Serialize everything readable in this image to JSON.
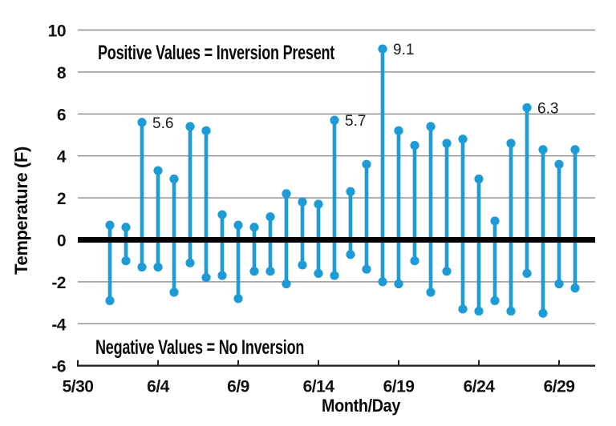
{
  "chart_data": {
    "type": "stem-range",
    "title": "",
    "xlabel": "Month/Day",
    "ylabel": "Temperature (F)",
    "ylim": [
      -6,
      10
    ],
    "yticks": [
      10,
      8,
      6,
      4,
      2,
      0,
      -2,
      -4,
      -6
    ],
    "xticks": [
      {
        "label": "5/30",
        "day": 0
      },
      {
        "label": "6/4",
        "day": 5
      },
      {
        "label": "6/9",
        "day": 10
      },
      {
        "label": "6/14",
        "day": 15
      },
      {
        "label": "6/19",
        "day": 20
      },
      {
        "label": "6/24",
        "day": 25
      },
      {
        "label": "6/29",
        "day": 30
      }
    ],
    "x_axis_span_days": [
      0,
      32.25
    ],
    "categories": [
      "6/1",
      "6/2",
      "6/3",
      "6/4",
      "6/5",
      "6/6",
      "6/7",
      "6/8",
      "6/9",
      "6/10",
      "6/11",
      "6/12",
      "6/13",
      "6/14",
      "6/15",
      "6/16",
      "6/17",
      "6/18",
      "6/19",
      "6/20",
      "6/21",
      "6/22",
      "6/23",
      "6/24",
      "6/25",
      "6/26",
      "6/27",
      "6/28",
      "6/29",
      "6/30"
    ],
    "category_days": [
      2,
      3,
      4,
      5,
      6,
      7,
      8,
      9,
      10,
      11,
      12,
      13,
      14,
      15,
      16,
      17,
      18,
      19,
      20,
      21,
      22,
      23,
      24,
      25,
      26,
      27,
      28,
      29,
      30,
      31
    ],
    "series": [
      {
        "name": "daily_max",
        "values": [
          0.7,
          0.6,
          5.6,
          3.3,
          2.9,
          5.4,
          5.2,
          1.2,
          0.7,
          0.6,
          1.1,
          2.2,
          1.8,
          1.7,
          5.7,
          2.3,
          3.6,
          9.1,
          5.2,
          4.5,
          5.4,
          4.6,
          4.8,
          2.9,
          0.9,
          4.6,
          6.3,
          4.3,
          3.6,
          4.3
        ]
      },
      {
        "name": "daily_min",
        "values": [
          -2.9,
          -1.0,
          -1.3,
          -1.3,
          -2.5,
          -1.1,
          -1.8,
          -1.7,
          -2.8,
          -1.5,
          -1.5,
          -2.1,
          -1.2,
          -1.6,
          -1.7,
          -0.7,
          -1.4,
          -2.0,
          -2.1,
          -1.0,
          -2.5,
          -1.5,
          -3.3,
          -3.4,
          -2.9,
          -3.4,
          -1.6,
          -3.5,
          -2.1,
          -2.3
        ]
      }
    ],
    "point_labels": [
      {
        "category": "6/3",
        "series": "daily_max",
        "text": "5.6"
      },
      {
        "category": "6/15",
        "series": "daily_max",
        "text": "5.7"
      },
      {
        "category": "6/18",
        "series": "daily_max",
        "text": "9.1"
      },
      {
        "category": "6/27",
        "series": "daily_max",
        "text": "6.3"
      }
    ],
    "annotations": [
      {
        "text": "Positive Values = Inversion Present",
        "position": "above-zero-line"
      },
      {
        "text": "Negative Values = No Inversion",
        "position": "below-zero-line"
      }
    ],
    "zero_line": {
      "present": true,
      "thickness": "thick"
    },
    "grid": true,
    "legend": false,
    "colors": {
      "stem": "#1C9BD6",
      "grid": "#8A8A8A",
      "axis": "#222222",
      "text": "#111111",
      "zero_line": "#000000"
    }
  }
}
